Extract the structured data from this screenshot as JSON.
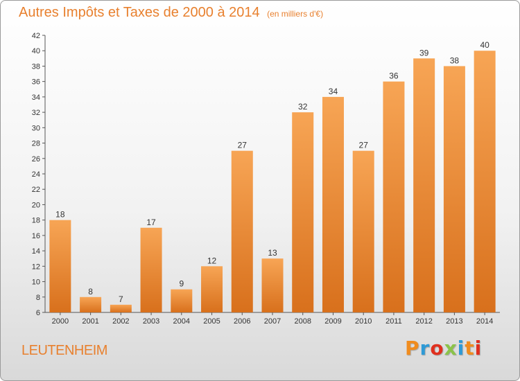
{
  "chart_data": {
    "type": "bar",
    "title": "Autres Impôts et Taxes de 2000 à 2014",
    "subtitle": "(en milliers d'€)",
    "categories": [
      "2000",
      "2001",
      "2002",
      "2003",
      "2004",
      "2005",
      "2006",
      "2007",
      "2008",
      "2009",
      "2010",
      "2011",
      "2012",
      "2013",
      "2014"
    ],
    "values": [
      18,
      8,
      7,
      17,
      9,
      12,
      27,
      13,
      32,
      34,
      27,
      36,
      39,
      38,
      40
    ],
    "ylim": [
      6,
      42
    ],
    "yticks": [
      6,
      8,
      10,
      12,
      14,
      16,
      18,
      20,
      22,
      24,
      26,
      28,
      30,
      32,
      34,
      36,
      38,
      40,
      42
    ],
    "xlabel": "",
    "ylabel": "",
    "grid": false,
    "bar_color": "#e8802e"
  },
  "footer": {
    "commune": "LEUTENHEIM",
    "brand": "Proxiti",
    "brand_colors": [
      "#f08c1e",
      "#2e9ad6",
      "#e0301e",
      "#8bc34a",
      "#2e9ad6",
      "#f08c1e",
      "#e0301e"
    ]
  },
  "colors": {
    "accent": "#e8802e"
  }
}
